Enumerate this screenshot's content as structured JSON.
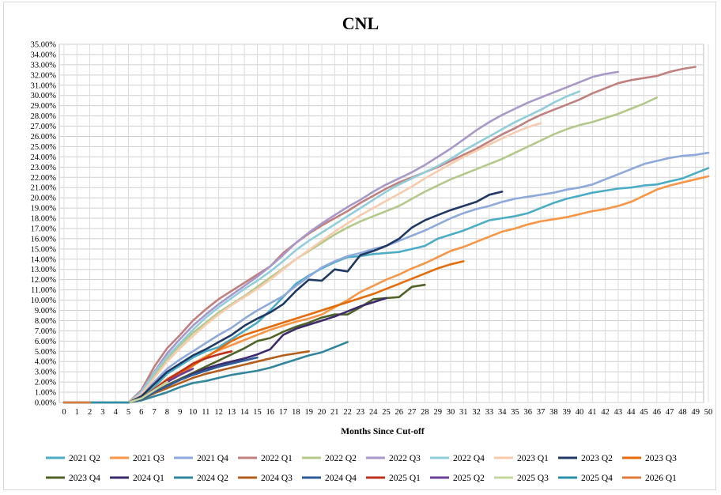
{
  "chart_data": {
    "type": "line",
    "title": "CNL",
    "xlabel": "Months Since Cut-off",
    "ylabel": "",
    "xlim": [
      0,
      50
    ],
    "ylim": [
      0,
      35
    ],
    "x_ticks": [
      "0",
      "1",
      "2",
      "3",
      "4",
      "5",
      "6",
      "7",
      "8",
      "9",
      "10",
      "11",
      "12",
      "13",
      "14",
      "15",
      "16",
      "17",
      "18",
      "19",
      "20",
      "21",
      "22",
      "23",
      "24",
      "25",
      "26",
      "27",
      "28",
      "29",
      "30",
      "31",
      "32",
      "33",
      "34",
      "35",
      "36",
      "37",
      "38",
      "39",
      "40",
      "41",
      "42",
      "43",
      "44",
      "45",
      "46",
      "47",
      "48",
      "49",
      "50"
    ],
    "y_ticks": [
      "0.00%",
      "1.00%",
      "2.00%",
      "3.00%",
      "4.00%",
      "5.00%",
      "6.00%",
      "7.00%",
      "8.00%",
      "9.00%",
      "10.00%",
      "11.00%",
      "12.00%",
      "13.00%",
      "14.00%",
      "15.00%",
      "16.00%",
      "17.00%",
      "18.00%",
      "19.00%",
      "20.00%",
      "21.00%",
      "22.00%",
      "23.00%",
      "24.00%",
      "25.00%",
      "26.00%",
      "27.00%",
      "28.00%",
      "29.00%",
      "30.00%",
      "31.00%",
      "32.00%",
      "33.00%",
      "34.00%",
      "35.00%"
    ],
    "grid": true,
    "legend_position": "bottom",
    "series": [
      {
        "name": "2021 Q2",
        "color": "#4bacc6",
        "values": [
          0,
          0,
          0,
          0,
          0,
          0,
          0.5,
          1.5,
          2.8,
          3.6,
          4.4,
          5.0,
          5.4,
          6.2,
          7.0,
          7.8,
          9.0,
          10.3,
          11.6,
          12.4,
          13.1,
          13.7,
          14.2,
          14.3,
          14.5,
          14.6,
          14.7,
          15.0,
          15.3,
          16.0,
          16.4,
          16.8,
          17.3,
          17.8,
          18.0,
          18.2,
          18.5,
          19.0,
          19.5,
          19.9,
          20.2,
          20.5,
          20.7,
          20.9,
          21.0,
          21.2,
          21.3,
          21.6,
          21.9,
          22.4,
          22.9
        ]
      },
      {
        "name": "2021 Q3",
        "color": "#f79646",
        "values": [
          0,
          0,
          0,
          0,
          0,
          0,
          0.4,
          1.3,
          2.3,
          3.0,
          3.8,
          4.5,
          5.1,
          5.6,
          6.1,
          6.6,
          7.1,
          7.5,
          7.9,
          8.2,
          8.6,
          9.3,
          10.0,
          10.8,
          11.4,
          12.0,
          12.5,
          13.1,
          13.6,
          14.2,
          14.8,
          15.2,
          15.7,
          16.2,
          16.7,
          17.0,
          17.4,
          17.7,
          17.9,
          18.1,
          18.4,
          18.7,
          18.9,
          19.2,
          19.6,
          20.2,
          20.8,
          21.2,
          21.5,
          21.8,
          22.1
        ]
      },
      {
        "name": "2021 Q4",
        "color": "#8ea9db",
        "values": [
          0,
          0,
          0,
          0,
          0,
          0,
          0.7,
          2.0,
          3.3,
          4.2,
          5.0,
          5.8,
          6.6,
          7.3,
          8.2,
          9.0,
          9.7,
          10.4,
          11.4,
          12.3,
          13.2,
          13.8,
          14.3,
          14.6,
          15.0,
          15.3,
          15.8,
          16.3,
          16.8,
          17.4,
          18.0,
          18.5,
          18.9,
          19.2,
          19.6,
          19.9,
          20.1,
          20.3,
          20.5,
          20.8,
          21.0,
          21.3,
          21.8,
          22.3,
          22.8,
          23.3,
          23.6,
          23.9,
          24.1,
          24.2,
          24.4
        ]
      },
      {
        "name": "2022 Q1",
        "color": "#c0807d",
        "values": [
          0,
          0,
          0,
          0,
          0,
          0,
          1.2,
          3.5,
          5.3,
          6.6,
          8.0,
          9.1,
          10.1,
          10.9,
          11.7,
          12.5,
          13.3,
          14.6,
          15.6,
          16.5,
          17.3,
          18.0,
          18.7,
          19.5,
          20.2,
          20.9,
          21.5,
          22.0,
          22.5,
          23.0,
          23.6,
          24.2,
          24.8,
          25.5,
          26.2,
          26.8,
          27.5,
          28.1,
          28.6,
          29.1,
          29.6,
          30.2,
          30.7,
          31.2,
          31.5,
          31.7,
          31.9,
          32.3,
          32.6,
          32.8,
          null
        ]
      },
      {
        "name": "2022 Q2",
        "color": "#b3c98a",
        "values": [
          0,
          0,
          0,
          0,
          0,
          0,
          0.9,
          2.6,
          4.3,
          5.6,
          6.8,
          7.8,
          8.8,
          9.6,
          10.4,
          11.3,
          12.2,
          13.1,
          14.0,
          14.8,
          15.6,
          16.4,
          17.1,
          17.7,
          18.2,
          18.7,
          19.2,
          19.9,
          20.6,
          21.2,
          21.8,
          22.3,
          22.8,
          23.3,
          23.8,
          24.4,
          25.0,
          25.6,
          26.2,
          26.7,
          27.1,
          27.4,
          27.8,
          28.2,
          28.7,
          29.2,
          29.8,
          null,
          null,
          null,
          null
        ]
      },
      {
        "name": "2022 Q3",
        "color": "#a898c9",
        "values": [
          0,
          0,
          0,
          0,
          0,
          0,
          1.1,
          3.0,
          4.8,
          6.2,
          7.5,
          8.6,
          9.6,
          10.5,
          11.4,
          12.3,
          13.3,
          14.4,
          15.6,
          16.6,
          17.5,
          18.3,
          19.1,
          19.8,
          20.6,
          21.3,
          21.9,
          22.5,
          23.2,
          24.0,
          24.8,
          25.7,
          26.6,
          27.4,
          28.1,
          28.7,
          29.3,
          29.8,
          30.3,
          30.8,
          31.3,
          31.8,
          32.1,
          32.3,
          null,
          null,
          null,
          null,
          null,
          null,
          null
        ]
      },
      {
        "name": "2022 Q4",
        "color": "#92cddc",
        "values": [
          0,
          0,
          0,
          0,
          0,
          0,
          1.0,
          2.9,
          4.5,
          5.8,
          7.1,
          8.3,
          9.3,
          10.2,
          11.1,
          11.9,
          12.8,
          13.8,
          14.9,
          15.8,
          16.6,
          17.4,
          18.2,
          19.0,
          19.8,
          20.6,
          21.3,
          21.9,
          22.5,
          23.1,
          23.8,
          24.6,
          25.3,
          26.0,
          26.7,
          27.4,
          28.0,
          28.6,
          29.3,
          29.9,
          30.4,
          null,
          null,
          null,
          null,
          null,
          null,
          null,
          null,
          null,
          null
        ]
      },
      {
        "name": "2023 Q1",
        "color": "#f8cbad",
        "values": [
          0,
          0,
          0,
          0,
          0,
          0,
          0.8,
          2.4,
          4.0,
          5.3,
          6.5,
          7.6,
          8.6,
          9.5,
          10.3,
          11.1,
          12.0,
          13.0,
          14.0,
          14.9,
          15.8,
          16.7,
          17.5,
          18.3,
          19.0,
          19.7,
          20.4,
          21.1,
          21.9,
          22.6,
          23.3,
          24.0,
          24.6,
          25.2,
          25.8,
          26.4,
          26.9,
          27.3,
          null,
          null,
          null,
          null,
          null,
          null,
          null,
          null,
          null,
          null,
          null,
          null,
          null
        ]
      },
      {
        "name": "2023 Q2",
        "color": "#1f3864",
        "values": [
          0,
          0,
          0,
          0,
          0,
          0,
          0.6,
          1.8,
          3.0,
          3.8,
          4.6,
          5.2,
          5.9,
          6.6,
          7.5,
          8.2,
          8.8,
          9.6,
          10.9,
          12.0,
          11.9,
          13.0,
          12.8,
          14.4,
          14.8,
          15.3,
          16.0,
          17.1,
          17.8,
          18.3,
          18.8,
          19.2,
          19.6,
          20.3,
          20.6,
          null,
          null,
          null,
          null,
          null,
          null,
          null,
          null,
          null,
          null,
          null,
          null,
          null,
          null,
          null,
          null
        ]
      },
      {
        "name": "2023 Q3",
        "color": "#e46c0a",
        "values": [
          0,
          0,
          0,
          0,
          0,
          0,
          0.4,
          1.2,
          2.0,
          2.8,
          3.6,
          4.4,
          5.2,
          6.0,
          6.6,
          7.0,
          7.4,
          7.8,
          8.2,
          8.6,
          9.0,
          9.4,
          9.8,
          10.2,
          10.6,
          11.1,
          11.6,
          12.1,
          12.6,
          13.1,
          13.5,
          13.8,
          null,
          null,
          null,
          null,
          null,
          null,
          null,
          null,
          null,
          null,
          null,
          null,
          null,
          null,
          null,
          null,
          null,
          null,
          null
        ]
      },
      {
        "name": "2023 Q4",
        "color": "#4f6228",
        "values": [
          0,
          0,
          0,
          0,
          0,
          0,
          0.3,
          1.0,
          1.7,
          2.3,
          2.9,
          3.5,
          4.1,
          4.7,
          5.3,
          6.0,
          6.3,
          6.9,
          7.4,
          7.8,
          8.3,
          8.6,
          8.6,
          9.3,
          10.1,
          10.2,
          10.3,
          11.3,
          11.5,
          null,
          null,
          null,
          null,
          null,
          null,
          null,
          null,
          null,
          null,
          null,
          null,
          null,
          null,
          null,
          null,
          null,
          null,
          null,
          null,
          null,
          null
        ]
      },
      {
        "name": "2024 Q1",
        "color": "#3d2b6b",
        "values": [
          0,
          0,
          0,
          0,
          0,
          0,
          0.3,
          1.0,
          1.6,
          2.2,
          2.8,
          3.3,
          3.7,
          4.0,
          4.3,
          4.7,
          5.2,
          6.6,
          7.2,
          7.6,
          8.0,
          8.4,
          8.9,
          9.4,
          9.8,
          10.2,
          null,
          null,
          null,
          null,
          null,
          null,
          null,
          null,
          null,
          null,
          null,
          null,
          null,
          null,
          null,
          null,
          null,
          null,
          null,
          null,
          null,
          null,
          null,
          null,
          null
        ]
      },
      {
        "name": "2024 Q2",
        "color": "#31859c",
        "values": [
          0,
          0,
          0,
          0,
          0,
          0,
          0.2,
          0.6,
          1.0,
          1.5,
          1.9,
          2.1,
          2.4,
          2.7,
          2.9,
          3.1,
          3.4,
          3.8,
          4.2,
          4.6,
          4.9,
          5.4,
          5.9,
          null,
          null,
          null,
          null,
          null,
          null,
          null,
          null,
          null,
          null,
          null,
          null,
          null,
          null,
          null,
          null,
          null,
          null,
          null,
          null,
          null,
          null,
          null,
          null,
          null,
          null,
          null,
          null
        ]
      },
      {
        "name": "2024 Q3",
        "color": "#b35e1c",
        "values": [
          0,
          0,
          0,
          0,
          0,
          0,
          0.3,
          0.9,
          1.4,
          1.9,
          2.4,
          2.8,
          3.1,
          3.4,
          3.7,
          4.0,
          4.3,
          4.6,
          4.8,
          5.0,
          null,
          null,
          null,
          null,
          null,
          null,
          null,
          null,
          null,
          null,
          null,
          null,
          null,
          null,
          null,
          null,
          null,
          null,
          null,
          null,
          null,
          null,
          null,
          null,
          null,
          null,
          null,
          null,
          null,
          null,
          null
        ]
      },
      {
        "name": "2024 Q4",
        "color": "#2e5b98",
        "values": [
          0,
          0,
          0,
          0,
          0,
          0,
          0.3,
          1.0,
          1.6,
          2.2,
          2.7,
          3.1,
          3.5,
          3.8,
          4.1,
          4.4,
          null,
          null,
          null,
          null,
          null,
          null,
          null,
          null,
          null,
          null,
          null,
          null,
          null,
          null,
          null,
          null,
          null,
          null,
          null,
          null,
          null,
          null,
          null,
          null,
          null,
          null,
          null,
          null,
          null,
          null,
          null,
          null,
          null,
          null,
          null
        ]
      },
      {
        "name": "2025 Q1",
        "color": "#c0311c",
        "values": [
          0,
          0,
          0,
          0,
          0,
          0,
          0.4,
          1.3,
          2.2,
          3.0,
          3.8,
          4.3,
          4.7,
          5.0,
          null,
          null,
          null,
          null,
          null,
          null,
          null,
          null,
          null,
          null,
          null,
          null,
          null,
          null,
          null,
          null,
          null,
          null,
          null,
          null,
          null,
          null,
          null,
          null,
          null,
          null,
          null,
          null,
          null,
          null,
          null,
          null,
          null,
          null,
          null,
          null,
          null
        ]
      },
      {
        "name": "2025 Q2",
        "color": "#6a3f99",
        "values": [
          0,
          0,
          0,
          0,
          0,
          0,
          0.4,
          1.2,
          2.0,
          2.7,
          3.3,
          null,
          null,
          null,
          null,
          null,
          null,
          null,
          null,
          null,
          null,
          null,
          null,
          null,
          null,
          null,
          null,
          null,
          null,
          null,
          null,
          null,
          null,
          null,
          null,
          null,
          null,
          null,
          null,
          null,
          null,
          null,
          null,
          null,
          null,
          null,
          null,
          null,
          null,
          null,
          null
        ]
      },
      {
        "name": "2025 Q3",
        "color": "#c4d79b",
        "values": [
          0,
          0,
          0,
          0,
          0,
          0,
          0.4,
          1.2,
          2.0,
          null,
          null,
          null,
          null,
          null,
          null,
          null,
          null,
          null,
          null,
          null,
          null,
          null,
          null,
          null,
          null,
          null,
          null,
          null,
          null,
          null,
          null,
          null,
          null,
          null,
          null,
          null,
          null,
          null,
          null,
          null,
          null,
          null,
          null,
          null,
          null,
          null,
          null,
          null,
          null,
          null,
          null
        ]
      },
      {
        "name": "2025 Q4",
        "color": "#2a8fa8",
        "values": [
          0,
          0,
          0,
          0,
          0,
          0,
          null,
          null,
          null,
          null,
          null,
          null,
          null,
          null,
          null,
          null,
          null,
          null,
          null,
          null,
          null,
          null,
          null,
          null,
          null,
          null,
          null,
          null,
          null,
          null,
          null,
          null,
          null,
          null,
          null,
          null,
          null,
          null,
          null,
          null,
          null,
          null,
          null,
          null,
          null,
          null,
          null,
          null,
          null,
          null,
          null
        ]
      },
      {
        "name": "2026 Q1",
        "color": "#e07b39",
        "values": [
          0,
          0,
          0,
          null,
          null,
          null,
          null,
          null,
          null,
          null,
          null,
          null,
          null,
          null,
          null,
          null,
          null,
          null,
          null,
          null,
          null,
          null,
          null,
          null,
          null,
          null,
          null,
          null,
          null,
          null,
          null,
          null,
          null,
          null,
          null,
          null,
          null,
          null,
          null,
          null,
          null,
          null,
          null,
          null,
          null,
          null,
          null,
          null,
          null,
          null,
          null
        ]
      }
    ]
  }
}
